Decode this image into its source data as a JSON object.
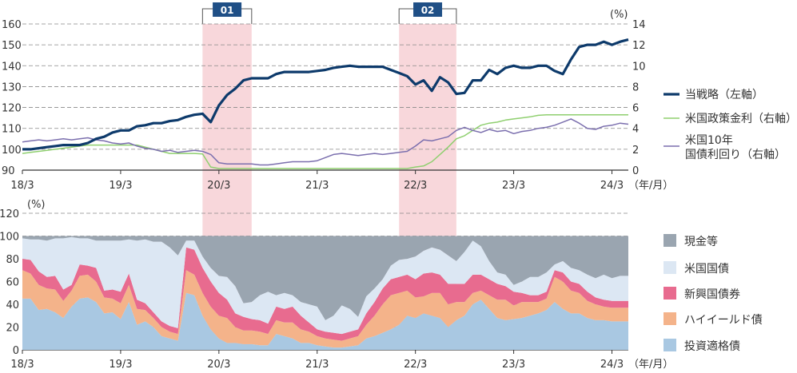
{
  "colors": {
    "strategy": "#0d3a6b",
    "policy_rate": "#8fcf6f",
    "yield10y": "#7b6fae",
    "cash": "#9aa5b0",
    "us_bonds": "#dce7f3",
    "em_bonds": "#e86b8f",
    "high_yield": "#f4b38a",
    "ig_bonds": "#a9c8e2",
    "shade": "#f6c9cf",
    "label_box": "#1f4f86",
    "grid": "#888888"
  },
  "chart_data": [
    {
      "type": "line",
      "x_ticks": [
        "18/3",
        "19/3",
        "20/3",
        "21/3",
        "22/3",
        "23/3",
        "24/3"
      ],
      "x_unit": "（年/月）",
      "ylim_left": [
        90,
        160
      ],
      "yticks_left": [
        "90",
        "100",
        "110",
        "120",
        "130",
        "140",
        "150",
        "160"
      ],
      "ylim_right": [
        0,
        14
      ],
      "yticks_right": [
        "0",
        "2",
        "4",
        "6",
        "8",
        "10",
        "12",
        "14"
      ],
      "y_right_unit": "(%)",
      "grid": "dashed horizontal",
      "highlight_periods": [
        {
          "label": "01",
          "start": "2020/1",
          "end": "2020/7"
        },
        {
          "label": "02",
          "start": "2022/1",
          "end": "2022/8"
        }
      ],
      "legend": [
        "当戦略（左軸）",
        "米国政策金利（右軸）",
        "米国10年\n国債利回り（右軸）"
      ],
      "series": [
        {
          "name": "当戦略（左軸）",
          "axis": "left",
          "values": [
            100,
            100,
            100.5,
            101,
            101.5,
            102,
            102,
            102,
            103,
            105,
            106,
            108,
            109,
            109,
            111,
            111.5,
            112.5,
            112.5,
            113.5,
            114,
            115.5,
            116.5,
            117,
            113,
            121,
            126,
            129,
            133,
            134,
            134,
            134,
            136,
            137,
            137,
            137,
            137,
            137.5,
            138,
            139,
            139.5,
            140,
            139.5,
            139.5,
            139.5,
            139.5,
            138,
            136.5,
            135,
            131,
            133,
            128,
            134.5,
            132,
            126.5,
            127,
            133,
            133,
            138,
            136,
            139,
            140,
            139,
            139,
            140,
            140,
            137.5,
            136,
            143,
            149,
            150,
            150,
            151.5,
            150,
            151.5,
            152.5
          ]
        },
        {
          "name": "米国政策金利（右軸）",
          "axis": "right",
          "values": [
            1.6,
            1.7,
            1.8,
            1.9,
            2.0,
            2.1,
            2.2,
            2.3,
            2.4,
            2.4,
            2.4,
            2.4,
            2.4,
            2.4,
            2.4,
            2.2,
            2.0,
            1.8,
            1.6,
            1.6,
            1.6,
            1.6,
            1.55,
            0.3,
            0.15,
            0.15,
            0.15,
            0.15,
            0.15,
            0.15,
            0.15,
            0.15,
            0.15,
            0.15,
            0.15,
            0.15,
            0.15,
            0.15,
            0.15,
            0.15,
            0.15,
            0.15,
            0.15,
            0.15,
            0.15,
            0.15,
            0.15,
            0.15,
            0.3,
            0.4,
            0.8,
            1.5,
            2.2,
            3.0,
            3.3,
            3.8,
            4.3,
            4.5,
            4.6,
            4.8,
            4.9,
            5.0,
            5.1,
            5.25,
            5.3,
            5.3,
            5.3,
            5.3,
            5.3,
            5.3,
            5.3,
            5.3,
            5.3,
            5.3,
            5.3
          ]
        },
        {
          "name": "米国10年\n国債利回り（右軸）",
          "axis": "right",
          "values": [
            2.7,
            2.8,
            2.9,
            2.8,
            2.9,
            3.0,
            2.9,
            3.0,
            3.1,
            2.9,
            2.8,
            2.6,
            2.5,
            2.6,
            2.3,
            2.1,
            2.0,
            1.8,
            1.9,
            1.7,
            1.8,
            1.9,
            1.8,
            1.5,
            0.7,
            0.6,
            0.6,
            0.6,
            0.6,
            0.5,
            0.5,
            0.6,
            0.7,
            0.8,
            0.8,
            0.8,
            0.9,
            1.2,
            1.5,
            1.6,
            1.5,
            1.4,
            1.5,
            1.6,
            1.5,
            1.6,
            1.7,
            1.8,
            2.3,
            2.9,
            2.8,
            3.0,
            3.2,
            3.8,
            4.1,
            3.8,
            3.6,
            3.9,
            3.7,
            3.8,
            3.5,
            3.7,
            3.8,
            4.0,
            4.1,
            4.3,
            4.6,
            4.9,
            4.5,
            4.0,
            3.9,
            4.2,
            4.3,
            4.5,
            4.4
          ]
        }
      ]
    },
    {
      "type": "area",
      "stacked": true,
      "x_ticks": [
        "18/3",
        "19/3",
        "20/3",
        "21/3",
        "22/3",
        "23/3",
        "24/3"
      ],
      "x_unit": "（年/月）",
      "ylim": [
        0,
        120
      ],
      "yticks": [
        "0",
        "20",
        "40",
        "60",
        "80",
        "100",
        "120"
      ],
      "y_unit": "(%)",
      "legend": [
        "現金等",
        "米国国債",
        "新興国債券",
        "ハイイールド債",
        "投資適格債"
      ],
      "series": [
        {
          "name": "投資適格債",
          "values": [
            45,
            45,
            35,
            36,
            33,
            28,
            38,
            45,
            46,
            42,
            32,
            33,
            27,
            42,
            22,
            25,
            20,
            12,
            10,
            8,
            50,
            48,
            30,
            18,
            10,
            6,
            6,
            5,
            5,
            4,
            4,
            14,
            12,
            10,
            6,
            6,
            4,
            3,
            2,
            2,
            3,
            4,
            10,
            12,
            15,
            18,
            22,
            30,
            28,
            32,
            30,
            28,
            20,
            26,
            30,
            40,
            44,
            36,
            28,
            26,
            27,
            28,
            30,
            32,
            35,
            42,
            36,
            32,
            32,
            28,
            26,
            26,
            25,
            25,
            25
          ]
        },
        {
          "name": "ハイイールド債",
          "values": [
            25,
            22,
            22,
            18,
            20,
            15,
            14,
            20,
            20,
            18,
            14,
            12,
            14,
            15,
            14,
            10,
            8,
            8,
            6,
            6,
            20,
            18,
            20,
            20,
            20,
            22,
            14,
            12,
            12,
            12,
            10,
            12,
            12,
            14,
            12,
            10,
            8,
            7,
            7,
            6,
            7,
            8,
            12,
            18,
            25,
            30,
            28,
            22,
            18,
            15,
            20,
            22,
            20,
            16,
            12,
            10,
            8,
            12,
            16,
            18,
            12,
            14,
            12,
            10,
            10,
            22,
            24,
            20,
            18,
            15,
            14,
            12,
            12,
            12,
            12
          ]
        },
        {
          "name": "新興国債券",
          "values": [
            10,
            12,
            12,
            10,
            12,
            10,
            5,
            10,
            8,
            12,
            6,
            8,
            10,
            10,
            8,
            6,
            5,
            5,
            5,
            5,
            20,
            22,
            22,
            22,
            20,
            16,
            12,
            12,
            10,
            10,
            9,
            12,
            12,
            14,
            12,
            8,
            6,
            6,
            6,
            6,
            6,
            6,
            10,
            12,
            14,
            14,
            14,
            14,
            16,
            20,
            18,
            16,
            18,
            16,
            16,
            16,
            14,
            14,
            14,
            12,
            12,
            8,
            6,
            6,
            6,
            6,
            8,
            8,
            8,
            8,
            6,
            6,
            6,
            6,
            6
          ]
        },
        {
          "name": "米国国債",
          "values": [
            18,
            18,
            28,
            32,
            33,
            45,
            42,
            23,
            24,
            24,
            44,
            43,
            45,
            30,
            52,
            56,
            62,
            70,
            69,
            64,
            6,
            8,
            10,
            12,
            15,
            20,
            24,
            12,
            15,
            22,
            28,
            10,
            14,
            10,
            12,
            16,
            20,
            10,
            15,
            25,
            20,
            11,
            15,
            12,
            8,
            12,
            15,
            14,
            20,
            20,
            22,
            22,
            25,
            20,
            28,
            30,
            25,
            16,
            10,
            10,
            6,
            10,
            16,
            16,
            17,
            5,
            10,
            12,
            12,
            15,
            17,
            22,
            20,
            22,
            22
          ]
        },
        {
          "name": "現金等",
          "values": [
            2,
            3,
            3,
            4,
            2,
            2,
            1,
            2,
            2,
            4,
            4,
            4,
            4,
            3,
            4,
            3,
            5,
            5,
            10,
            17,
            4,
            4,
            18,
            28,
            35,
            36,
            44,
            59,
            58,
            52,
            49,
            52,
            50,
            52,
            58,
            60,
            62,
            74,
            70,
            61,
            64,
            71,
            53,
            46,
            38,
            26,
            21,
            20,
            18,
            13,
            10,
            12,
            17,
            22,
            14,
            4,
            9,
            22,
            32,
            34,
            43,
            40,
            36,
            36,
            32,
            25,
            22,
            28,
            30,
            34,
            37,
            34,
            37,
            35,
            35
          ]
        }
      ]
    }
  ]
}
